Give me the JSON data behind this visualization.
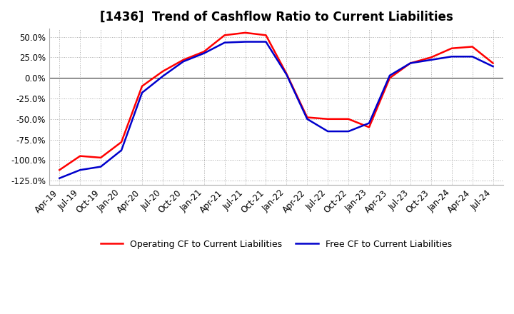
{
  "title": "[1436]  Trend of Cashflow Ratio to Current Liabilities",
  "x_labels": [
    "Apr-19",
    "Jul-19",
    "Oct-19",
    "Jan-20",
    "Apr-20",
    "Jul-20",
    "Oct-20",
    "Jan-21",
    "Apr-21",
    "Jul-21",
    "Oct-21",
    "Jan-22",
    "Apr-22",
    "Jul-22",
    "Oct-22",
    "Jan-23",
    "Apr-23",
    "Jul-23",
    "Oct-23",
    "Jan-24",
    "Apr-24",
    "Jul-24"
  ],
  "operating_cf": [
    -112,
    -95,
    -97,
    -78,
    -10,
    8,
    22,
    32,
    52,
    55,
    52,
    5,
    -48,
    -50,
    -50,
    -60,
    0,
    18,
    25,
    36,
    38,
    18
  ],
  "free_cf": [
    -122,
    -112,
    -108,
    -88,
    -18,
    2,
    20,
    30,
    43,
    44,
    44,
    4,
    -50,
    -65,
    -65,
    -55,
    3,
    18,
    22,
    26,
    26,
    14
  ],
  "ylim": [
    -130,
    60
  ],
  "yticks": [
    50,
    25,
    0,
    -25,
    -50,
    -75,
    -100,
    -125
  ],
  "operating_color": "#ff0000",
  "free_color": "#0000cc",
  "background_color": "#ffffff",
  "zero_line_color": "#333333",
  "grid_color": "#aaaaaa",
  "title_fontsize": 12,
  "legend_labels": [
    "Operating CF to Current Liabilities",
    "Free CF to Current Liabilities"
  ]
}
